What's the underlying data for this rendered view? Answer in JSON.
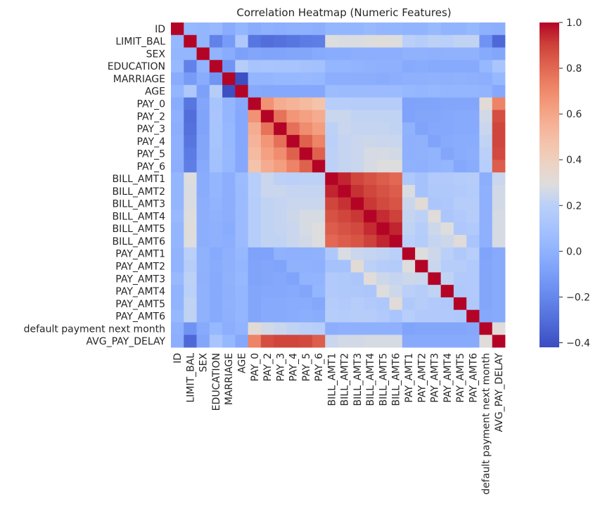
{
  "chart_data": {
    "type": "heatmap",
    "title": "Correlation Heatmap (Numeric Features)",
    "xlabel": "",
    "ylabel": "",
    "labels": [
      "ID",
      "LIMIT_BAL",
      "SEX",
      "EDUCATION",
      "MARRIAGE",
      "AGE",
      "PAY_0",
      "PAY_2",
      "PAY_3",
      "PAY_4",
      "PAY_5",
      "PAY_6",
      "BILL_AMT1",
      "BILL_AMT2",
      "BILL_AMT3",
      "BILL_AMT4",
      "BILL_AMT5",
      "BILL_AMT6",
      "PAY_AMT1",
      "PAY_AMT2",
      "PAY_AMT3",
      "PAY_AMT4",
      "PAY_AMT5",
      "PAY_AMT6",
      "default payment next month",
      "AVG_PAY_DELAY"
    ],
    "colormap": "coolwarm",
    "vmin": -0.42,
    "vmax": 1.0,
    "colorbar_ticks": [
      1.0,
      0.8,
      0.6,
      0.4,
      0.2,
      0.0,
      -0.2,
      -0.4
    ],
    "colorbar_tick_labels": [
      "1.0",
      "0.8",
      "0.6",
      "0.4",
      "0.2",
      "0.0",
      "−0.2",
      "−0.4"
    ],
    "matrix": [
      [
        1.0,
        0.03,
        0.02,
        0.04,
        -0.03,
        0.02,
        -0.03,
        -0.01,
        -0.02,
        -0.01,
        -0.01,
        -0.02,
        0.02,
        0.02,
        0.02,
        0.04,
        0.02,
        0.02,
        0.01,
        0.01,
        0.04,
        0.01,
        0.01,
        0.03,
        -0.01,
        -0.02
      ],
      [
        0.03,
        1.0,
        0.02,
        -0.22,
        -0.11,
        0.14,
        -0.27,
        -0.3,
        -0.29,
        -0.27,
        -0.25,
        -0.24,
        0.29,
        0.28,
        0.28,
        0.29,
        0.3,
        0.29,
        0.2,
        0.18,
        0.21,
        0.2,
        0.22,
        0.22,
        -0.15,
        -0.32
      ],
      [
        0.02,
        0.02,
        1.0,
        0.01,
        -0.03,
        -0.09,
        -0.06,
        -0.07,
        -0.07,
        -0.06,
        -0.06,
        -0.04,
        -0.03,
        -0.03,
        -0.02,
        -0.02,
        -0.02,
        -0.02,
        -0.0,
        -0.0,
        -0.01,
        -0.0,
        -0.0,
        -0.0,
        -0.04,
        -0.06
      ],
      [
        0.04,
        -0.22,
        0.01,
        1.0,
        -0.14,
        0.18,
        0.11,
        0.12,
        0.11,
        0.11,
        0.1,
        0.09,
        0.02,
        0.02,
        0.01,
        -0.0,
        -0.01,
        -0.01,
        -0.04,
        -0.03,
        -0.04,
        -0.04,
        -0.04,
        -0.04,
        0.03,
        0.12
      ],
      [
        -0.03,
        -0.11,
        -0.03,
        -0.14,
        1.0,
        -0.41,
        0.02,
        0.02,
        0.03,
        0.03,
        0.04,
        0.03,
        -0.02,
        -0.02,
        -0.02,
        -0.02,
        -0.03,
        -0.02,
        -0.01,
        -0.01,
        -0.0,
        -0.01,
        -0.0,
        -0.01,
        -0.02,
        0.03
      ],
      [
        0.02,
        0.14,
        -0.09,
        0.18,
        -0.41,
        1.0,
        -0.04,
        -0.05,
        -0.05,
        -0.05,
        -0.05,
        -0.05,
        0.06,
        0.05,
        0.05,
        0.05,
        0.05,
        0.05,
        0.03,
        0.02,
        0.03,
        0.02,
        0.02,
        0.02,
        0.01,
        -0.05
      ],
      [
        -0.03,
        -0.27,
        -0.06,
        0.11,
        0.02,
        -0.04,
        1.0,
        0.67,
        0.57,
        0.54,
        0.51,
        0.47,
        0.19,
        0.19,
        0.18,
        0.18,
        0.18,
        0.18,
        -0.08,
        -0.07,
        -0.07,
        -0.06,
        -0.06,
        -0.06,
        0.32,
        0.72
      ],
      [
        -0.01,
        -0.3,
        -0.07,
        0.12,
        0.02,
        -0.05,
        0.67,
        1.0,
        0.77,
        0.66,
        0.62,
        0.58,
        0.24,
        0.24,
        0.22,
        0.22,
        0.22,
        0.22,
        -0.08,
        -0.06,
        -0.06,
        -0.05,
        -0.04,
        -0.04,
        0.26,
        0.87
      ],
      [
        -0.02,
        -0.29,
        -0.07,
        0.11,
        0.03,
        -0.05,
        0.57,
        0.77,
        1.0,
        0.78,
        0.69,
        0.63,
        0.21,
        0.24,
        0.23,
        0.23,
        0.23,
        0.22,
        0.0,
        -0.07,
        -0.05,
        -0.05,
        -0.04,
        -0.04,
        0.24,
        0.89
      ],
      [
        -0.01,
        -0.27,
        -0.06,
        0.11,
        0.03,
        -0.05,
        0.54,
        0.66,
        0.78,
        1.0,
        0.82,
        0.72,
        0.2,
        0.23,
        0.24,
        0.25,
        0.24,
        0.24,
        -0.01,
        -0.0,
        -0.07,
        -0.04,
        -0.03,
        -0.03,
        0.22,
        0.89
      ],
      [
        -0.01,
        -0.25,
        -0.06,
        0.1,
        0.04,
        -0.05,
        0.51,
        0.62,
        0.69,
        0.82,
        1.0,
        0.82,
        0.21,
        0.23,
        0.24,
        0.27,
        0.27,
        0.26,
        -0.01,
        -0.0,
        0.01,
        -0.06,
        -0.03,
        -0.02,
        0.2,
        0.88
      ],
      [
        -0.02,
        -0.24,
        -0.04,
        0.09,
        0.03,
        -0.05,
        0.47,
        0.58,
        0.63,
        0.72,
        0.82,
        1.0,
        0.21,
        0.23,
        0.24,
        0.27,
        0.29,
        0.29,
        -0.0,
        -0.01,
        0.01,
        0.02,
        -0.05,
        -0.03,
        0.19,
        0.83
      ],
      [
        0.02,
        0.29,
        -0.03,
        0.02,
        -0.02,
        0.06,
        0.19,
        0.24,
        0.21,
        0.2,
        0.21,
        0.21,
        1.0,
        0.95,
        0.89,
        0.86,
        0.83,
        0.8,
        0.14,
        0.1,
        0.16,
        0.16,
        0.17,
        0.18,
        -0.02,
        0.24
      ],
      [
        0.02,
        0.28,
        -0.03,
        0.02,
        -0.02,
        0.05,
        0.19,
        0.24,
        0.24,
        0.23,
        0.23,
        0.23,
        0.95,
        1.0,
        0.93,
        0.89,
        0.86,
        0.83,
        0.28,
        0.1,
        0.15,
        0.15,
        0.16,
        0.17,
        -0.01,
        0.26
      ],
      [
        0.02,
        0.28,
        -0.02,
        0.01,
        -0.02,
        0.05,
        0.18,
        0.22,
        0.23,
        0.24,
        0.24,
        0.24,
        0.89,
        0.93,
        1.0,
        0.92,
        0.88,
        0.85,
        0.24,
        0.32,
        0.13,
        0.14,
        0.18,
        0.18,
        -0.01,
        0.26
      ],
      [
        0.04,
        0.29,
        -0.02,
        -0.0,
        -0.02,
        0.05,
        0.18,
        0.22,
        0.23,
        0.25,
        0.27,
        0.27,
        0.86,
        0.89,
        0.92,
        1.0,
        0.94,
        0.9,
        0.23,
        0.21,
        0.3,
        0.13,
        0.16,
        0.18,
        -0.01,
        0.27
      ],
      [
        0.02,
        0.3,
        -0.02,
        -0.01,
        -0.03,
        0.05,
        0.18,
        0.22,
        0.23,
        0.24,
        0.27,
        0.29,
        0.83,
        0.86,
        0.88,
        0.94,
        1.0,
        0.95,
        0.22,
        0.18,
        0.25,
        0.29,
        0.14,
        0.16,
        -0.01,
        0.27
      ],
      [
        0.02,
        0.29,
        -0.02,
        -0.01,
        -0.02,
        0.05,
        0.18,
        0.22,
        0.22,
        0.24,
        0.26,
        0.29,
        0.8,
        0.83,
        0.85,
        0.9,
        0.95,
        1.0,
        0.2,
        0.17,
        0.23,
        0.25,
        0.31,
        0.12,
        -0.01,
        0.27
      ],
      [
        0.01,
        0.2,
        -0.0,
        -0.04,
        -0.01,
        0.03,
        -0.08,
        -0.08,
        0.0,
        -0.01,
        -0.01,
        -0.0,
        0.14,
        0.28,
        0.24,
        0.23,
        0.22,
        0.2,
        1.0,
        0.29,
        0.25,
        0.2,
        0.15,
        0.19,
        -0.07,
        -0.04
      ],
      [
        0.01,
        0.18,
        -0.0,
        -0.03,
        -0.01,
        0.02,
        -0.07,
        -0.06,
        -0.07,
        -0.0,
        -0.0,
        -0.01,
        0.1,
        0.1,
        0.32,
        0.21,
        0.18,
        0.17,
        0.29,
        1.0,
        0.24,
        0.18,
        0.18,
        0.16,
        -0.06,
        -0.04
      ],
      [
        0.04,
        0.21,
        -0.01,
        -0.04,
        -0.0,
        0.03,
        -0.07,
        -0.06,
        -0.05,
        -0.07,
        0.01,
        0.01,
        0.16,
        0.15,
        0.13,
        0.3,
        0.25,
        0.23,
        0.25,
        0.24,
        1.0,
        0.22,
        0.16,
        0.16,
        -0.06,
        -0.04
      ],
      [
        0.01,
        0.2,
        -0.0,
        -0.04,
        -0.01,
        0.02,
        -0.06,
        -0.05,
        -0.05,
        -0.04,
        -0.06,
        0.02,
        0.16,
        0.15,
        0.14,
        0.13,
        0.29,
        0.25,
        0.2,
        0.18,
        0.22,
        1.0,
        0.15,
        0.16,
        -0.06,
        -0.04
      ],
      [
        0.01,
        0.22,
        -0.0,
        -0.04,
        -0.0,
        0.02,
        -0.06,
        -0.04,
        -0.04,
        -0.03,
        -0.03,
        -0.05,
        0.17,
        0.16,
        0.18,
        0.16,
        0.14,
        0.31,
        0.15,
        0.18,
        0.16,
        0.15,
        1.0,
        0.15,
        -0.06,
        -0.04
      ],
      [
        0.03,
        0.22,
        -0.0,
        -0.04,
        -0.01,
        0.02,
        -0.06,
        -0.04,
        -0.04,
        -0.03,
        -0.02,
        -0.03,
        0.18,
        0.17,
        0.18,
        0.18,
        0.16,
        0.12,
        0.19,
        0.16,
        0.16,
        0.16,
        0.15,
        1.0,
        -0.05,
        -0.04
      ],
      [
        -0.01,
        -0.15,
        -0.04,
        0.03,
        -0.02,
        0.01,
        0.32,
        0.26,
        0.24,
        0.22,
        0.2,
        0.19,
        -0.02,
        -0.01,
        -0.01,
        -0.01,
        -0.01,
        -0.01,
        -0.07,
        -0.06,
        -0.06,
        -0.06,
        -0.06,
        -0.05,
        1.0,
        0.3
      ],
      [
        -0.02,
        -0.32,
        -0.06,
        0.12,
        0.03,
        -0.05,
        0.72,
        0.87,
        0.89,
        0.89,
        0.88,
        0.83,
        0.24,
        0.26,
        0.26,
        0.27,
        0.27,
        0.27,
        -0.04,
        -0.04,
        -0.04,
        -0.04,
        -0.04,
        -0.04,
        0.3,
        1.0
      ]
    ]
  }
}
